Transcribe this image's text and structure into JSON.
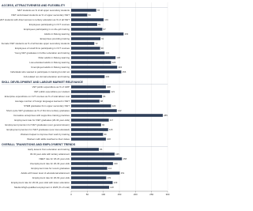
{
  "chart_data": {
    "type": "bar",
    "color": "#2f3f5a",
    "xlim": [
      0,
      300
    ],
    "xticks": [
      0,
      50,
      100,
      150,
      200,
      250,
      300
    ],
    "grid": true,
    "sections": [
      {
        "title": "ACCESS, ATTRACTIVENESS AND FLEXIBILITY",
        "categories": [
          "IVET students as % of all upper secondary students",
          "IVET work-based students as % of upper secondary IVET",
          "IVET students with direct access to tertiary education as % of all IVET",
          "Employees participating in CVT courses",
          "Employees participating in on-the-job training",
          "Adults in lifelong learning",
          "Enterprises providing training",
          "Female IVET students as % of all female upper secondary students",
          "Employees of small firms participating in CVT courses",
          "Young VET graduates in further education and training",
          "Older adults in lifelong learning",
          "Low-educated adults in lifelong learning",
          "Unemployed adults in lifelong learning",
          "Individuals who wanted to participate in training but did not",
          "Job-related non-formal education and training"
        ],
        "values": [
          78,
          50,
          101,
          81,
          97,
          163,
          91,
          72,
          90,
          104,
          138,
          124,
          143,
          156,
          104
        ]
      },
      {
        "title": "SKILL DEVELOPMENT AND LABOUR MARKET RELEVANCE",
        "categories": [
          "VET public expenditure as % of GDP",
          "VET public expenditure per student",
          "Enterprise expenditure on CVT courses as % of total labour cost",
          "Average number of foreign languages learned in IVET",
          "STEM graduates from upper secondary IVET",
          "Short-cycle VET graduates as % of first time tertiary graduates",
          "Innovative enterprises with supportive training practices",
          "Employment rate for IVET graduates (20-34 year-olds)",
          "Employment premium for IVET graduates (over general stream)",
          "Employment premium for IVET graduates (over low-educated)",
          "Workers helped to improve their work by training",
          "Workers with skills matched to their duties"
        ],
        "values": [
          108,
          121,
          96,
          88,
          124,
          142,
          285,
          117,
          93,
          115,
          99,
          108
        ]
      },
      {
        "title": "OVERALL TRANSITIONS AND EMPLOYMENT TRENDS",
        "categories": [
          "Early leavers from education and training",
          "30-34 year-olds with tertiary attainment",
          "NEET rate for 18-24 year-olds",
          "Unemployment rate for 20-34 year-olds",
          "Employment rate for recent graduates",
          "Adults with lower level of educational attainment",
          "Employment rate for 20-64 year-olds",
          "Employment rate for 20-64 year-olds with lower education",
          "Medium/high-qualified employment in 2025 (% of total)"
        ],
        "values": [
          86,
          135,
          158,
          130,
          112,
          151,
          109,
          129,
          118
        ]
      }
    ]
  }
}
